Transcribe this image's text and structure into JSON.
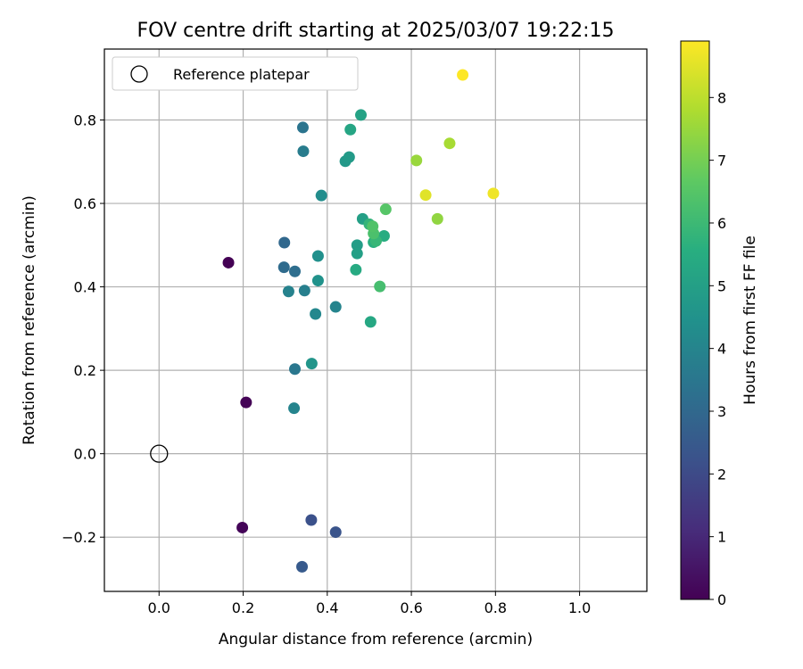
{
  "chart_data": {
    "type": "scatter",
    "title": "FOV centre drift starting at 2025/03/07 19:22:15",
    "xlabel": "Angular distance from reference (arcmin)",
    "ylabel": "Rotation from reference (arcmin)",
    "xlim": [
      -0.13,
      1.16
    ],
    "ylim": [
      -0.33,
      0.97
    ],
    "xticks": [
      0.0,
      0.2,
      0.4,
      0.6,
      0.8,
      1.0
    ],
    "xtick_labels": [
      "0.0",
      "0.2",
      "0.4",
      "0.6",
      "0.8",
      "1.0"
    ],
    "yticks": [
      -0.2,
      0.0,
      0.2,
      0.4,
      0.6,
      0.8
    ],
    "ytick_labels": [
      "−0.2",
      "0.0",
      "0.2",
      "0.4",
      "0.6",
      "0.8"
    ],
    "grid": true,
    "legend": {
      "position": "top-left",
      "entries": [
        "Reference platepar"
      ]
    },
    "reference_point": {
      "x": 0.0,
      "y": 0.0
    },
    "colorbar": {
      "label": "Hours from first FF file",
      "colormap": "viridis",
      "range": [
        0,
        8.9
      ],
      "ticks": [
        0,
        1,
        2,
        3,
        4,
        5,
        6,
        7,
        8
      ],
      "tick_labels": [
        "0",
        "1",
        "2",
        "3",
        "4",
        "5",
        "6",
        "7",
        "8"
      ]
    },
    "points": [
      {
        "x": 0.165,
        "y": 0.458,
        "hours": 0.0
      },
      {
        "x": 0.207,
        "y": 0.123,
        "hours": 0.05
      },
      {
        "x": 0.198,
        "y": -0.177,
        "hours": 0.1
      },
      {
        "x": 0.362,
        "y": -0.159,
        "hours": 2.2
      },
      {
        "x": 0.42,
        "y": -0.188,
        "hours": 2.3
      },
      {
        "x": 0.34,
        "y": -0.271,
        "hours": 2.5
      },
      {
        "x": 0.298,
        "y": 0.506,
        "hours": 3.0
      },
      {
        "x": 0.297,
        "y": 0.447,
        "hours": 3.1
      },
      {
        "x": 0.323,
        "y": 0.437,
        "hours": 3.2
      },
      {
        "x": 0.342,
        "y": 0.782,
        "hours": 3.4
      },
      {
        "x": 0.323,
        "y": 0.203,
        "hours": 3.5
      },
      {
        "x": 0.343,
        "y": 0.725,
        "hours": 3.7
      },
      {
        "x": 0.346,
        "y": 0.391,
        "hours": 3.8
      },
      {
        "x": 0.308,
        "y": 0.389,
        "hours": 3.9
      },
      {
        "x": 0.42,
        "y": 0.352,
        "hours": 4.0
      },
      {
        "x": 0.321,
        "y": 0.109,
        "hours": 4.0
      },
      {
        "x": 0.372,
        "y": 0.335,
        "hours": 4.1
      },
      {
        "x": 0.386,
        "y": 0.619,
        "hours": 4.3
      },
      {
        "x": 0.378,
        "y": 0.474,
        "hours": 4.4
      },
      {
        "x": 0.378,
        "y": 0.415,
        "hours": 4.5
      },
      {
        "x": 0.363,
        "y": 0.216,
        "hours": 4.6
      },
      {
        "x": 0.443,
        "y": 0.701,
        "hours": 4.7
      },
      {
        "x": 0.452,
        "y": 0.711,
        "hours": 4.8
      },
      {
        "x": 0.471,
        "y": 0.5,
        "hours": 4.9
      },
      {
        "x": 0.471,
        "y": 0.48,
        "hours": 5.0
      },
      {
        "x": 0.484,
        "y": 0.563,
        "hours": 5.0
      },
      {
        "x": 0.48,
        "y": 0.812,
        "hours": 5.1
      },
      {
        "x": 0.455,
        "y": 0.777,
        "hours": 5.2
      },
      {
        "x": 0.503,
        "y": 0.316,
        "hours": 5.3
      },
      {
        "x": 0.468,
        "y": 0.441,
        "hours": 5.4
      },
      {
        "x": 0.535,
        "y": 0.522,
        "hours": 5.5
      },
      {
        "x": 0.51,
        "y": 0.507,
        "hours": 5.6
      },
      {
        "x": 0.5,
        "y": 0.55,
        "hours": 5.8
      },
      {
        "x": 0.516,
        "y": 0.51,
        "hours": 5.9
      },
      {
        "x": 0.525,
        "y": 0.401,
        "hours": 6.2
      },
      {
        "x": 0.51,
        "y": 0.528,
        "hours": 6.3
      },
      {
        "x": 0.508,
        "y": 0.545,
        "hours": 6.4
      },
      {
        "x": 0.539,
        "y": 0.586,
        "hours": 6.5
      },
      {
        "x": 0.662,
        "y": 0.563,
        "hours": 7.4
      },
      {
        "x": 0.612,
        "y": 0.703,
        "hours": 7.5
      },
      {
        "x": 0.691,
        "y": 0.744,
        "hours": 7.7
      },
      {
        "x": 0.634,
        "y": 0.62,
        "hours": 8.5
      },
      {
        "x": 0.795,
        "y": 0.624,
        "hours": 8.7
      },
      {
        "x": 0.722,
        "y": 0.908,
        "hours": 8.9
      }
    ]
  }
}
